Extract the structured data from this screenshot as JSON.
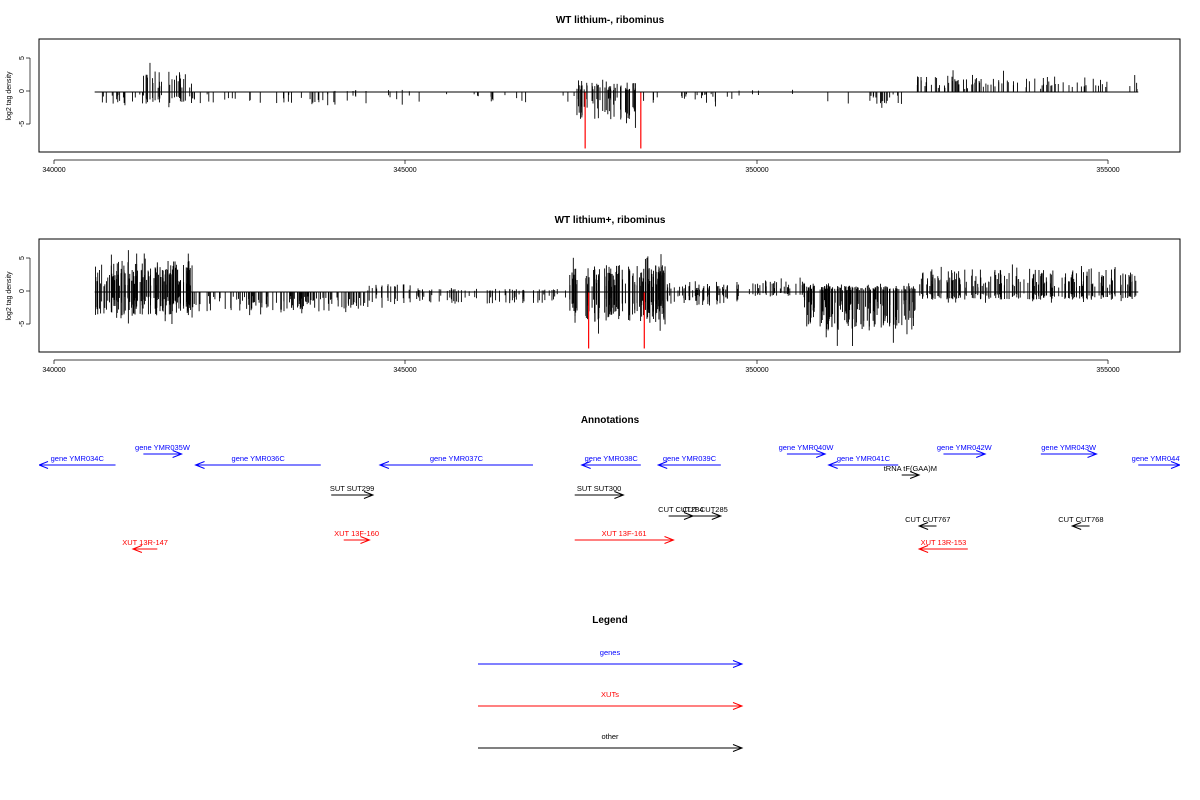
{
  "chart_data": [
    {
      "type": "bar",
      "title": "WT lithium-, ribominus",
      "ylabel": "log2 tag density",
      "xlim": [
        339600,
        356000
      ],
      "ylim": [
        -8.5,
        7.5
      ],
      "x_ticks": [
        "340000",
        "345000",
        "350000",
        "355000"
      ],
      "y_ticks": [
        "5",
        "0",
        "-5"
      ],
      "baseline": {
        "x_start": 340400,
        "x_end": 355400
      },
      "coverage_seed": 7,
      "density_segments": [
        {
          "x": [
            340400,
            341100
          ],
          "up": 0,
          "down": 1.5,
          "n": 18
        },
        {
          "x": [
            341100,
            341800
          ],
          "up": 2.8,
          "down": 1.5,
          "n": 30
        },
        {
          "x": [
            341800,
            343800
          ],
          "up": 0,
          "down": 1.6,
          "n": 30
        },
        {
          "x": [
            343800,
            345000
          ],
          "up": 0.3,
          "down": 1.2,
          "n": 12
        },
        {
          "x": [
            345000,
            347300
          ],
          "up": 0,
          "down": 1.4,
          "n": 16
        },
        {
          "x": [
            347300,
            348200
          ],
          "up": 1.2,
          "down": 3.5,
          "n": 55
        },
        {
          "x": [
            348200,
            349600
          ],
          "up": 0,
          "down": 1.4,
          "n": 22
        },
        {
          "x": [
            349600,
            350500
          ],
          "up": 0.3,
          "down": 0.6,
          "n": 4
        },
        {
          "x": [
            350900,
            352000
          ],
          "up": 0,
          "down": 1.6,
          "n": 20
        },
        {
          "x": [
            352200,
            355400
          ],
          "up": 2.0,
          "down": 0,
          "n": 90
        }
      ],
      "highlights": [
        {
          "x": 347450,
          "y": -8
        },
        {
          "x": 348250,
          "y": -8
        }
      ]
    },
    {
      "type": "bar",
      "title": "WT lithium+, ribominus",
      "ylabel": "log2 tag density",
      "xlim": [
        339600,
        356000
      ],
      "ylim": [
        -8.5,
        7.5
      ],
      "x_ticks": [
        "340000",
        "345000",
        "350000",
        "355000"
      ],
      "y_ticks": [
        "5",
        "0",
        "-5"
      ],
      "baseline": {
        "x_start": 340400,
        "x_end": 355400
      },
      "coverage_seed": 13,
      "density_segments": [
        {
          "x": [
            340400,
            341800
          ],
          "up": 4.0,
          "down": 3.0,
          "n": 140
        },
        {
          "x": [
            341800,
            344300
          ],
          "up": 0,
          "down": 2.5,
          "n": 120
        },
        {
          "x": [
            344300,
            345000
          ],
          "up": 1.0,
          "down": 1.5,
          "n": 20
        },
        {
          "x": [
            345000,
            347200
          ],
          "up": 0.4,
          "down": 1.5,
          "n": 60
        },
        {
          "x": [
            347200,
            348600
          ],
          "up": 3.5,
          "down": 4.0,
          "n": 120
        },
        {
          "x": [
            348600,
            349800
          ],
          "up": 1.0,
          "down": 1.8,
          "n": 50
        },
        {
          "x": [
            349800,
            350600
          ],
          "up": 1.5,
          "down": 0.5,
          "n": 30
        },
        {
          "x": [
            350600,
            352200
          ],
          "up": 0.8,
          "down": 5.0,
          "n": 150
        },
        {
          "x": [
            352200,
            355400
          ],
          "up": 3.0,
          "down": 1.0,
          "n": 180
        }
      ],
      "highlights": [
        {
          "x": 347500,
          "y": -8
        },
        {
          "x": 348300,
          "y": -8
        }
      ]
    }
  ],
  "annotations": {
    "title": "Annotations",
    "xlim": [
      339600,
      356000
    ],
    "tracks": [
      {
        "label": "gene YMR034C",
        "x1": 340700,
        "x2": 339600,
        "row": 1,
        "color": "#0000ff"
      },
      {
        "label": "gene YMR035W",
        "x1": 341100,
        "x2": 341650,
        "row": 0,
        "color": "#0000ff"
      },
      {
        "label": "gene YMR036C",
        "x1": 343650,
        "x2": 341850,
        "row": 1,
        "color": "#0000ff"
      },
      {
        "label": "gene YMR037C",
        "x1": 346700,
        "x2": 344500,
        "row": 1,
        "color": "#0000ff"
      },
      {
        "label": "gene YMR038C",
        "x1": 348250,
        "x2": 347400,
        "row": 1,
        "color": "#0000ff"
      },
      {
        "label": "gene YMR039C",
        "x1": 349400,
        "x2": 348500,
        "row": 1,
        "color": "#0000ff"
      },
      {
        "label": "gene YMR040W",
        "x1": 350350,
        "x2": 350900,
        "row": 0,
        "color": "#0000ff"
      },
      {
        "label": "gene YMR041C",
        "x1": 351950,
        "x2": 350950,
        "row": 1,
        "color": "#0000ff"
      },
      {
        "label": "gene YMR042W",
        "x1": 352600,
        "x2": 353200,
        "row": 0,
        "color": "#0000ff"
      },
      {
        "label": "gene YMR043W",
        "x1": 354000,
        "x2": 354800,
        "row": 0,
        "color": "#0000ff"
      },
      {
        "label": "gene YMR044W",
        "x1": 355400,
        "x2": 356000,
        "row": 1,
        "color": "#0000ff"
      },
      {
        "label": "tRNA tF(GAA)M",
        "x1": 352000,
        "x2": 352250,
        "row": 2,
        "color": "#000000"
      },
      {
        "label": "SUT SUT299",
        "x1": 343800,
        "x2": 344400,
        "row": 3,
        "color": "#000000"
      },
      {
        "label": "SUT SUT300",
        "x1": 347300,
        "x2": 348000,
        "row": 3,
        "color": "#000000"
      },
      {
        "label": "CUT CUT284",
        "x1": 348650,
        "x2": 349000,
        "row": 4,
        "color": "#000000"
      },
      {
        "label": "CUT CUT285",
        "x1": 348950,
        "x2": 349400,
        "row": 4,
        "color": "#000000"
      },
      {
        "label": "CUT CUT767",
        "x1": 352500,
        "x2": 352250,
        "row": 5,
        "color": "#000000"
      },
      {
        "label": "CUT CUT768",
        "x1": 354700,
        "x2": 354450,
        "row": 5,
        "color": "#000000"
      },
      {
        "label": "XUT 13R-147",
        "x1": 341300,
        "x2": 340950,
        "row": 7,
        "color": "#ff0000"
      },
      {
        "label": "XUT 13F-160",
        "x1": 343980,
        "x2": 344350,
        "row": 6,
        "color": "#ff0000"
      },
      {
        "label": "XUT 13F-161",
        "x1": 347300,
        "x2": 348720,
        "row": 6,
        "color": "#ff0000"
      },
      {
        "label": "XUT 13R-153",
        "x1": 352950,
        "x2": 352250,
        "row": 7,
        "color": "#ff0000"
      }
    ]
  },
  "legend": {
    "title": "Legend",
    "items": [
      {
        "label": "genes",
        "color": "#0000ff"
      },
      {
        "label": "XUTs",
        "color": "#ff0000"
      },
      {
        "label": "other",
        "color": "#000000"
      }
    ]
  },
  "colors": {
    "axis": "#000000",
    "highlight": "#ff0000",
    "bars": "#000000"
  }
}
